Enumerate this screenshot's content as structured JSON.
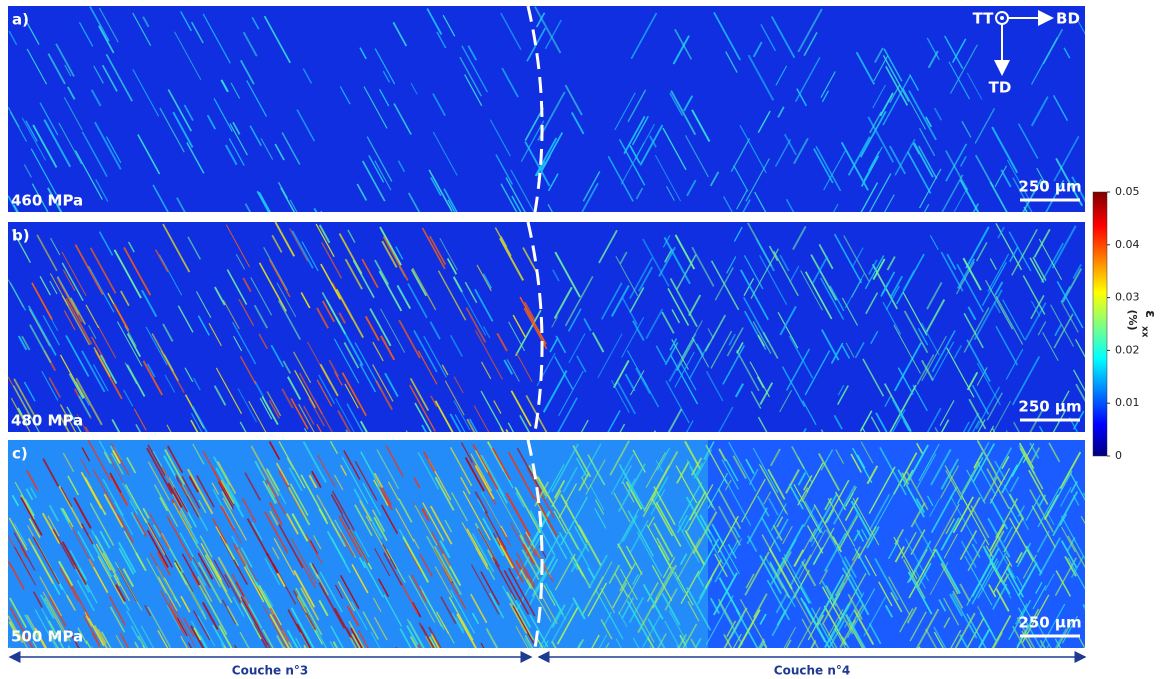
{
  "panels": [
    {
      "label": "a)",
      "stress": "460 MPa",
      "scale_bar": "250 µm"
    },
    {
      "label": "b)",
      "stress": "480 MPa",
      "scale_bar": "250 µm"
    },
    {
      "label": "c)",
      "stress": "500 MPa",
      "scale_bar": "250 µm"
    }
  ],
  "orientation": {
    "out_of_plane": "TT",
    "horizontal": "BD",
    "vertical": "TD"
  },
  "colorbar": {
    "symbol": "ε",
    "subscript": "xx",
    "unit": "(%)",
    "ticks": [
      0,
      0.01,
      0.02,
      0.03,
      0.04,
      0.05
    ]
  },
  "layers": {
    "left": "Couche n°3",
    "right": "Couche n°4"
  }
}
